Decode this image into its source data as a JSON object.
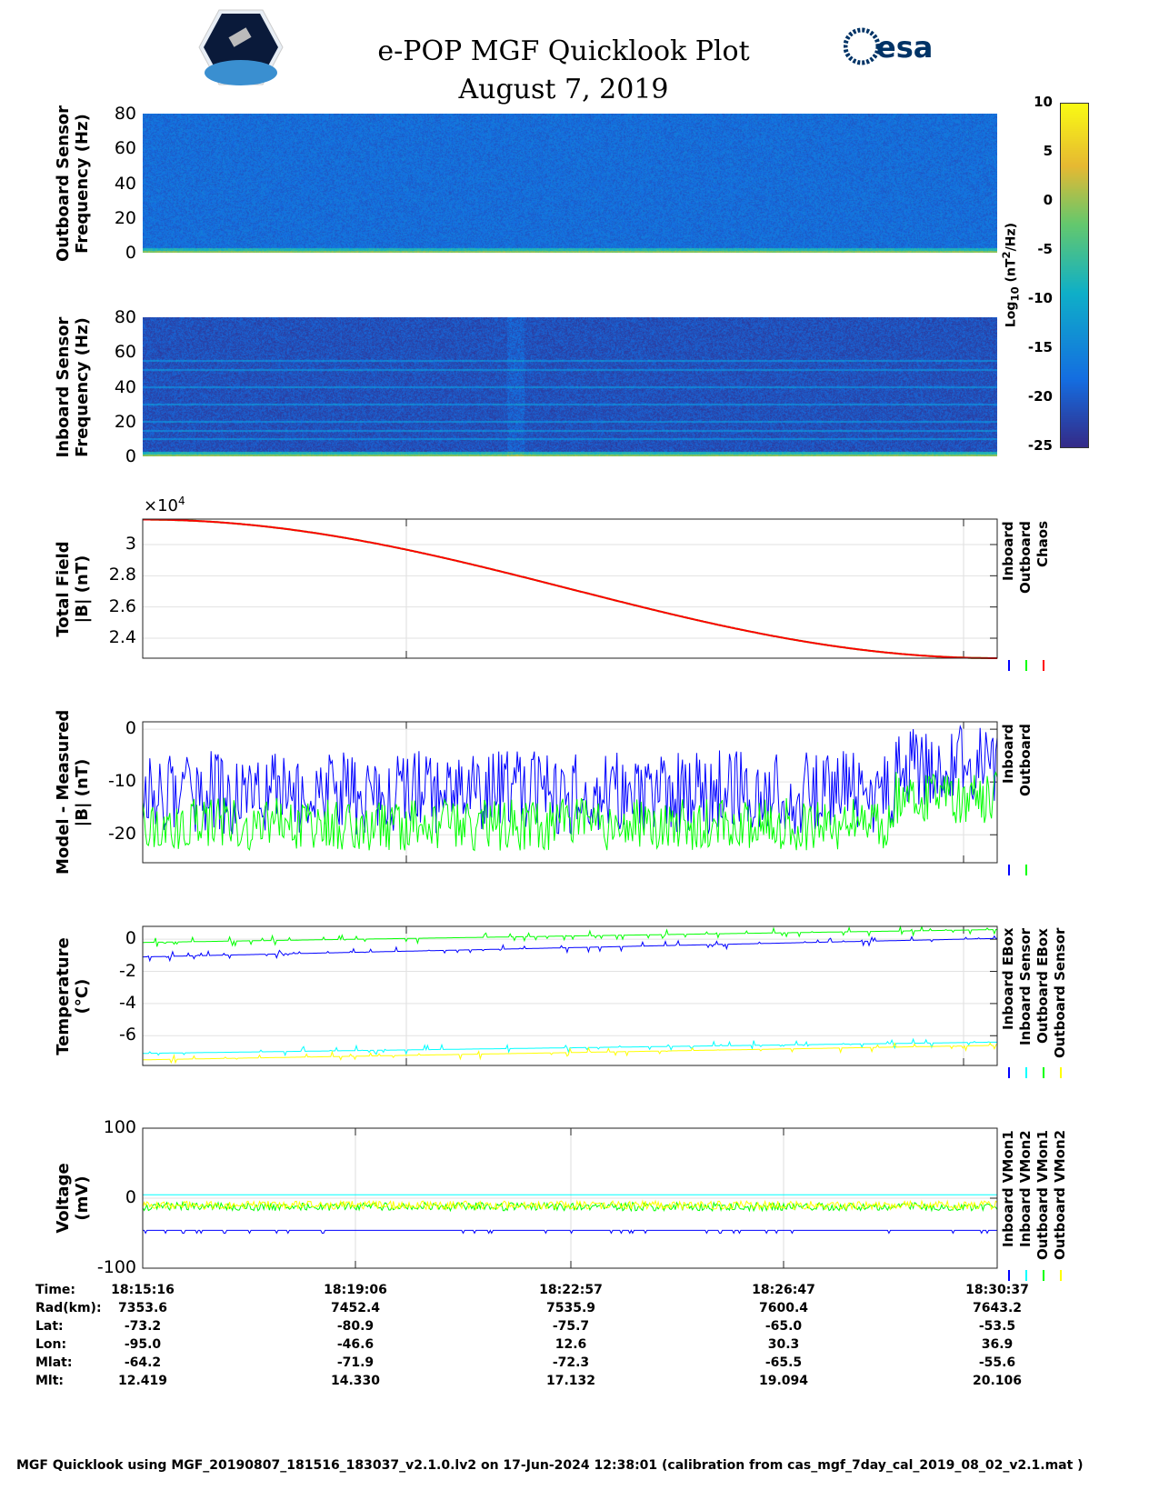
{
  "header": {
    "title": "e-POP MGF Quicklook Plot",
    "date": "August 7, 2019",
    "logo_left": "CASSIOPE",
    "logo_right": "esa"
  },
  "chart_data": [
    {
      "type": "heatmap",
      "name": "outboard-spectrogram",
      "ylabel": "Outboard Sensor\nFrequency (Hz)",
      "ylabel1": "Outboard Sensor",
      "ylabel2": "Frequency (Hz)",
      "ylim": [
        0,
        80
      ],
      "yticks": [
        "80",
        "60",
        "40",
        "20",
        "0"
      ],
      "background_log10": -18,
      "low_freq_log10": -2
    },
    {
      "type": "heatmap",
      "name": "inboard-spectrogram",
      "ylabel1": "Inboard Sensor",
      "ylabel2": "Frequency (Hz)",
      "ylim": [
        0,
        80
      ],
      "yticks": [
        "80",
        "60",
        "40",
        "20",
        "0"
      ],
      "background_log10": -21,
      "lines_hz": [
        10,
        15,
        20,
        30,
        40,
        50,
        55
      ]
    },
    {
      "type": "colorbar",
      "label": "Log10 (nT2/Hz)",
      "label_main": "Log",
      "label_sub": "10",
      "label_rest": " (nT",
      "label_sup": "2",
      "label_end": "/Hz)",
      "range": [
        -25,
        10
      ],
      "ticks": [
        "10",
        "5",
        "0",
        "-5",
        "-10",
        "-15",
        "-20",
        "-25"
      ]
    },
    {
      "type": "line",
      "name": "total-field",
      "ylabel1": "Total Field",
      "ylabel2": "|B| (nT)",
      "multiplier": "×10",
      "multiplier_exp": "4",
      "ylim": [
        2.272,
        3.163
      ],
      "yticks": [
        "3",
        "2.8",
        "2.6",
        "2.4"
      ],
      "series": [
        {
          "name": "Inboard",
          "color": "#0000ff"
        },
        {
          "name": "Outboard",
          "color": "#00ff00"
        },
        {
          "name": "Chaos",
          "color": "#ff0000"
        }
      ],
      "start": 3.16,
      "end": 2.272
    },
    {
      "type": "line",
      "name": "model-minus-measured",
      "ylabel1": "Model - Measured",
      "ylabel2": "|B| (nT)",
      "ylim": [
        -25.3,
        1.4
      ],
      "yticks": [
        "0",
        "-10",
        "-20"
      ],
      "series": [
        {
          "name": "Inboard",
          "color": "#0000ff",
          "base": -12,
          "amp": 8
        },
        {
          "name": "Outboard",
          "color": "#00ff00",
          "base": -18,
          "amp": 5
        }
      ]
    },
    {
      "type": "line",
      "name": "temperature",
      "ylabel1": "Temperature",
      "ylabel2": "(°C)",
      "ylim": [
        -7.85,
        0.8
      ],
      "yticks": [
        "0",
        "-2",
        "-4",
        "-6"
      ],
      "series": [
        {
          "name": "Inboard EBox",
          "color": "#0000ff",
          "start": -1.1,
          "end": 0.05
        },
        {
          "name": "Inboard Sensor",
          "color": "#00ffff",
          "start": -7.1,
          "end": -6.4
        },
        {
          "name": "Outboard EBox",
          "color": "#00ff00",
          "start": -0.2,
          "end": 0.6
        },
        {
          "name": "Outboard Sensor",
          "color": "#ffff00",
          "start": -7.5,
          "end": -6.6
        }
      ]
    },
    {
      "type": "line",
      "name": "voltage",
      "ylabel1": "Voltage",
      "ylabel2": "(mV)",
      "ylim": [
        -100,
        100
      ],
      "yticks": [
        "100",
        "0",
        "-100"
      ],
      "series": [
        {
          "name": "Inboard VMon1",
          "color": "#0000ff",
          "level": -46
        },
        {
          "name": "Inboard VMon2",
          "color": "#00ffff",
          "level": 5
        },
        {
          "name": "Outboard VMon1",
          "color": "#00ff00",
          "level": -12
        },
        {
          "name": "Outboard VMon2",
          "color": "#ffff00",
          "level": -10
        }
      ]
    }
  ],
  "ephemeris": {
    "labels": [
      "Time:",
      "Rad(km):",
      "Lat:",
      "Lon:",
      "Mlat:",
      "Mlt:"
    ],
    "columns": [
      [
        "18:15:16",
        "7353.6",
        "-73.2",
        "-95.0",
        "-64.2",
        "12.419"
      ],
      [
        "18:19:06",
        "7452.4",
        "-80.9",
        "-46.6",
        "-71.9",
        "14.330"
      ],
      [
        "18:22:57",
        "7535.9",
        "-75.7",
        "12.6",
        "-72.3",
        "17.132"
      ],
      [
        "18:26:47",
        "7600.4",
        "-65.0",
        "30.3",
        "-65.5",
        "19.094"
      ],
      [
        "18:30:37",
        "7643.2",
        "-53.5",
        "36.9",
        "-55.6",
        "20.106"
      ]
    ]
  },
  "footer": "MGF Quicklook using MGF_20190807_181516_183037_v2.1.0.lv2 on 17-Jun-2024 12:38:01 (calibration from cas_mgf_7day_cal_2019_08_02_v2.1.mat )"
}
